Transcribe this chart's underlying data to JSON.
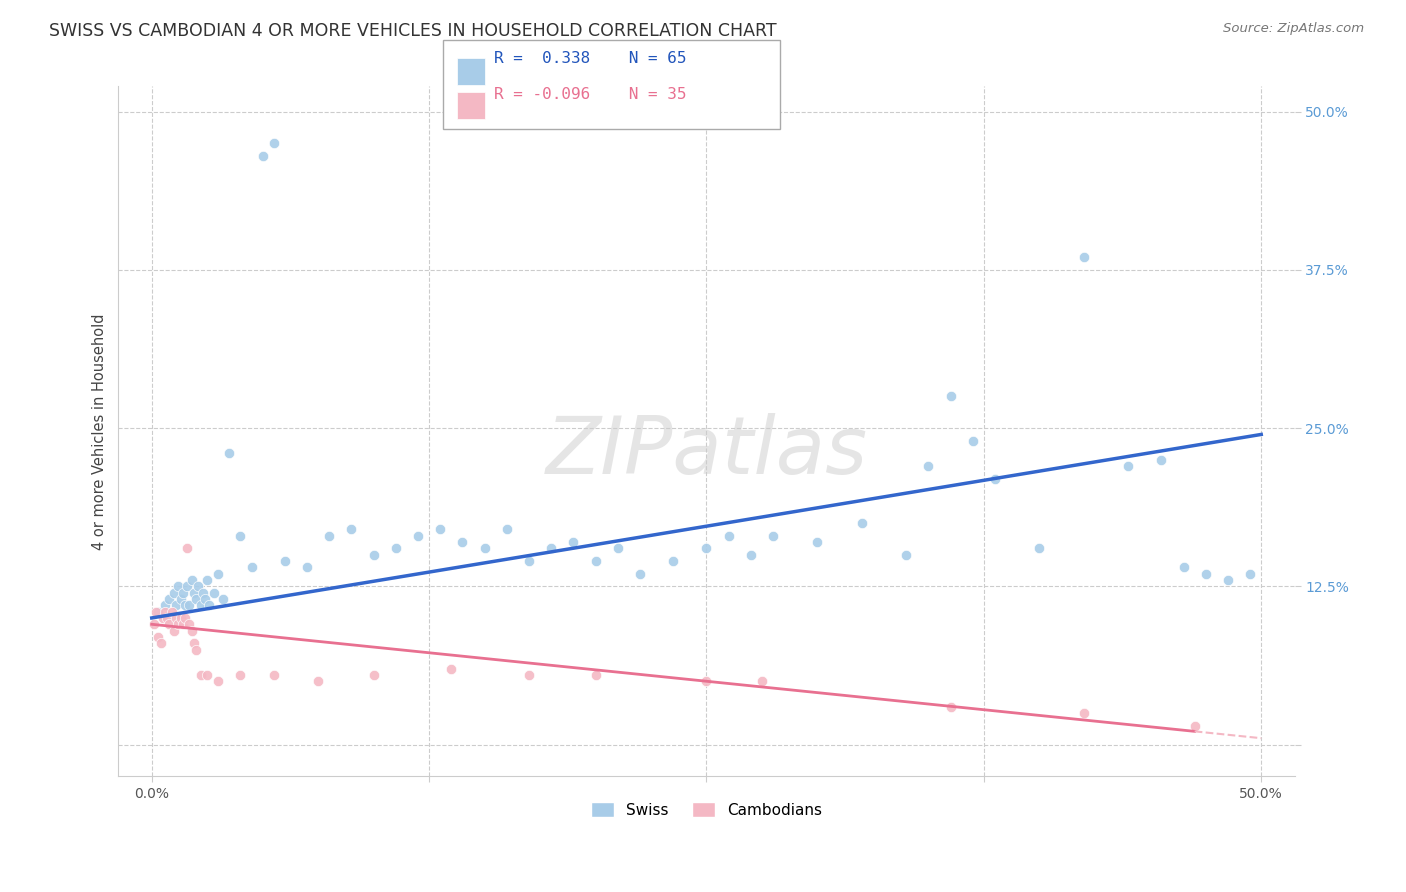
{
  "title": "SWISS VS CAMBODIAN 4 OR MORE VEHICLES IN HOUSEHOLD CORRELATION CHART",
  "source": "Source: ZipAtlas.com",
  "ylabel": "4 or more Vehicles in Household",
  "xlim": [
    0.0,
    50.0
  ],
  "ylim": [
    0.0,
    50.0
  ],
  "yticks": [
    0.0,
    12.5,
    25.0,
    37.5,
    50.0
  ],
  "xticks": [
    0.0,
    12.5,
    25.0,
    37.5,
    50.0
  ],
  "swiss_R": 0.338,
  "swiss_N": 65,
  "cambodian_R": -0.096,
  "cambodian_N": 35,
  "swiss_color": "#a8cce8",
  "cambodian_color": "#f4b8c4",
  "swiss_line_color": "#3366cc",
  "cambodian_line_color": "#e87090",
  "cambodian_line_dashed_color": "#f4b8c4",
  "background_color": "#ffffff",
  "swiss_x": [
    0.3,
    0.6,
    0.8,
    1.0,
    1.1,
    1.2,
    1.3,
    1.4,
    1.5,
    1.6,
    1.7,
    1.8,
    1.9,
    2.0,
    2.1,
    2.2,
    2.3,
    2.4,
    2.5,
    2.6,
    2.8,
    3.0,
    3.2,
    3.5,
    4.0,
    4.5,
    5.0,
    5.5,
    6.0,
    7.0,
    8.0,
    9.0,
    10.0,
    11.0,
    12.0,
    13.0,
    14.0,
    15.0,
    16.0,
    17.0,
    18.0,
    19.0,
    20.0,
    21.0,
    22.0,
    23.5,
    25.0,
    26.0,
    27.0,
    28.0,
    30.0,
    32.0,
    34.0,
    35.0,
    36.0,
    37.0,
    38.0,
    40.0,
    42.0,
    44.0,
    45.5,
    46.5,
    47.5,
    48.5,
    49.5
  ],
  "swiss_y": [
    10.5,
    11.0,
    11.5,
    12.0,
    11.0,
    12.5,
    11.5,
    12.0,
    11.0,
    12.5,
    11.0,
    13.0,
    12.0,
    11.5,
    12.5,
    11.0,
    12.0,
    11.5,
    13.0,
    11.0,
    12.0,
    13.5,
    11.5,
    23.0,
    16.5,
    14.0,
    46.5,
    47.5,
    14.5,
    14.0,
    16.5,
    17.0,
    15.0,
    15.5,
    16.5,
    17.0,
    16.0,
    15.5,
    17.0,
    14.5,
    15.5,
    16.0,
    14.5,
    15.5,
    13.5,
    14.5,
    15.5,
    16.5,
    15.0,
    16.5,
    16.0,
    17.5,
    15.0,
    22.0,
    27.5,
    24.0,
    21.0,
    15.5,
    38.5,
    22.0,
    22.5,
    14.0,
    13.5,
    13.0,
    13.5
  ],
  "cambodian_x": [
    0.1,
    0.2,
    0.3,
    0.4,
    0.5,
    0.6,
    0.7,
    0.8,
    0.9,
    1.0,
    1.1,
    1.2,
    1.3,
    1.4,
    1.5,
    1.6,
    1.7,
    1.8,
    1.9,
    2.0,
    2.2,
    2.5,
    3.0,
    4.0,
    5.5,
    7.5,
    10.0,
    13.5,
    17.0,
    20.0,
    25.0,
    27.5,
    36.0,
    42.0,
    47.0
  ],
  "cambodian_y": [
    9.5,
    10.5,
    8.5,
    8.0,
    10.0,
    10.5,
    10.0,
    9.5,
    10.5,
    9.0,
    10.0,
    9.5,
    10.0,
    9.5,
    10.0,
    15.5,
    9.5,
    9.0,
    8.0,
    7.5,
    5.5,
    5.5,
    5.0,
    5.5,
    5.5,
    5.0,
    5.5,
    6.0,
    5.5,
    5.5,
    5.0,
    5.0,
    3.0,
    2.5,
    1.5
  ]
}
